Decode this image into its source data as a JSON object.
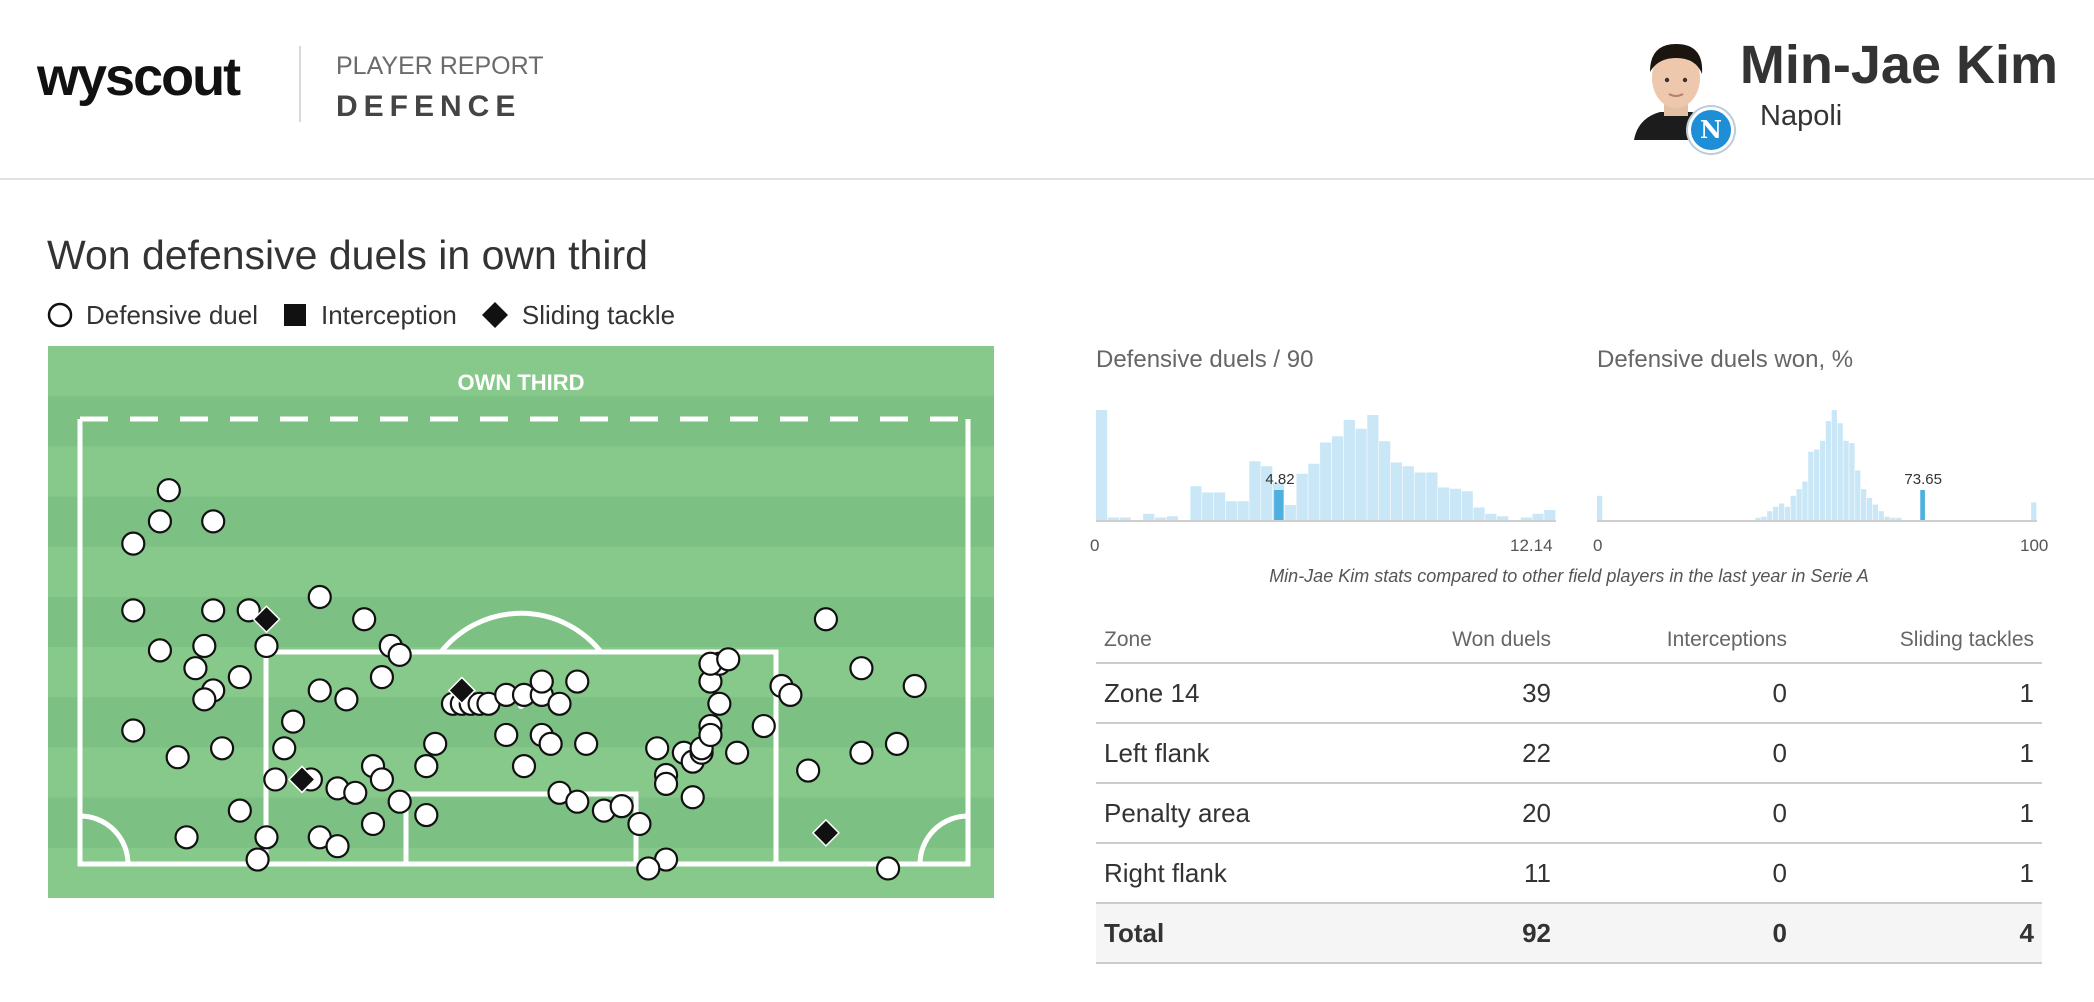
{
  "header": {
    "logo": "wyscout",
    "report_label": "PLAYER REPORT",
    "report_section": "DEFENCE",
    "player_name": "Min-Jae Kim",
    "club": "Napoli",
    "badge_letter": "N"
  },
  "section": {
    "title": "Won defensive duels in own third"
  },
  "legend": [
    {
      "label": "Defensive duel",
      "icon": "circle-icon"
    },
    {
      "label": "Interception",
      "icon": "square-icon"
    },
    {
      "label": "Sliding tackle",
      "icon": "diamond-icon"
    }
  ],
  "pitch": {
    "zone_label": "OWN THIRD",
    "colors": {
      "light": "#86c98a",
      "dark": "#7cc183",
      "line": "#ffffff"
    }
  },
  "histograms": {
    "caption": "Min-Jae Kim stats compared to other field players in the last year in Serie A",
    "bar_color": "#c9e7f6",
    "highlight_color": "#4fb0e0"
  },
  "chart_data": [
    {
      "type": "scatter",
      "title": "Won defensive duels in own third",
      "xlim": [
        0,
        100
      ],
      "ylim": [
        0,
        100
      ],
      "series": [
        {
          "name": "Defensive duel",
          "marker": "circle",
          "points": [
            [
              10,
              16
            ],
            [
              9,
              23
            ],
            [
              15,
              23
            ],
            [
              6,
              28
            ],
            [
              6,
              43
            ],
            [
              15,
              43
            ],
            [
              19,
              43
            ],
            [
              9,
              52
            ],
            [
              14,
              51
            ],
            [
              21,
              51
            ],
            [
              18,
              58
            ],
            [
              27,
              40
            ],
            [
              32,
              45
            ],
            [
              35,
              51
            ],
            [
              36,
              53
            ],
            [
              30,
              63
            ],
            [
              34,
              58
            ],
            [
              27,
              61
            ],
            [
              24,
              68
            ],
            [
              13,
              56
            ],
            [
              15,
              61
            ],
            [
              14,
              63
            ],
            [
              6,
              70
            ],
            [
              11,
              76
            ],
            [
              16,
              74
            ],
            [
              23,
              74
            ],
            [
              22,
              81
            ],
            [
              26,
              81
            ],
            [
              29,
              83
            ],
            [
              33,
              78
            ],
            [
              34,
              81
            ],
            [
              31,
              84
            ],
            [
              36,
              86
            ],
            [
              33,
              91
            ],
            [
              18,
              88
            ],
            [
              12,
              94
            ],
            [
              21,
              94
            ],
            [
              27,
              94
            ],
            [
              29,
              96
            ],
            [
              20,
              99
            ],
            [
              39,
              89
            ],
            [
              39,
              78
            ],
            [
              40,
              73
            ],
            [
              42,
              64
            ],
            [
              43,
              64
            ],
            [
              44,
              64
            ],
            [
              45,
              64
            ],
            [
              46,
              64
            ],
            [
              48,
              62
            ],
            [
              50,
              62
            ],
            [
              52,
              62
            ],
            [
              52,
              59
            ],
            [
              56,
              59
            ],
            [
              54,
              64
            ],
            [
              48,
              71
            ],
            [
              52,
              71
            ],
            [
              53,
              73
            ],
            [
              50,
              78
            ],
            [
              57,
              73
            ],
            [
              54,
              84
            ],
            [
              56,
              86
            ],
            [
              59,
              88
            ],
            [
              61,
              87
            ],
            [
              63,
              91
            ],
            [
              66,
              99
            ],
            [
              65,
              74
            ],
            [
              66,
              80
            ],
            [
              66,
              82
            ],
            [
              68,
              75
            ],
            [
              69,
              77
            ],
            [
              70,
              75
            ],
            [
              70,
              74
            ],
            [
              71,
              69
            ],
            [
              71,
              71
            ],
            [
              72,
              64
            ],
            [
              71,
              59
            ],
            [
              72,
              55
            ],
            [
              79,
              60
            ],
            [
              80,
              62
            ],
            [
              77,
              69
            ],
            [
              74,
              75
            ],
            [
              82,
              79
            ],
            [
              71,
              55
            ],
            [
              73,
              54
            ],
            [
              88,
              56
            ],
            [
              88,
              75
            ],
            [
              92,
              73
            ],
            [
              91,
              101
            ],
            [
              94,
              60
            ],
            [
              84,
              45
            ],
            [
              69,
              85
            ],
            [
              64,
              101
            ]
          ]
        },
        {
          "name": "Interception",
          "marker": "square",
          "points": []
        },
        {
          "name": "Sliding tackle",
          "marker": "diamond",
          "points": [
            [
              21,
              45
            ],
            [
              43,
              61
            ],
            [
              25,
              81
            ],
            [
              84,
              93
            ]
          ]
        }
      ]
    },
    {
      "type": "bar",
      "title": "Defensive duels / 90",
      "xlim": [
        0,
        12.14
      ],
      "tick_labels": [
        "0",
        "12.14"
      ],
      "highlight_value": 4.82,
      "highlight_label": "4.82",
      "values": [
        88,
        2,
        2,
        0,
        5,
        2,
        3,
        0,
        27,
        22,
        22,
        15,
        15,
        47,
        43,
        30,
        12,
        37,
        45,
        62,
        67,
        80,
        73,
        84,
        63,
        46,
        43,
        38,
        38,
        26,
        25,
        23,
        10,
        5,
        3,
        0,
        2,
        5,
        8
      ]
    },
    {
      "type": "bar",
      "title": "Defensive duels won, %",
      "xlim": [
        0,
        100
      ],
      "tick_labels": [
        "0",
        "100"
      ],
      "highlight_value": 73.65,
      "highlight_label": "73.65",
      "values": [
        22,
        0,
        0,
        0,
        0,
        0,
        0,
        0,
        0,
        0,
        0,
        0,
        0,
        0,
        0,
        0,
        0,
        0,
        0,
        0,
        0,
        0,
        0,
        0,
        0,
        0,
        0,
        2,
        3,
        8,
        12,
        15,
        12,
        22,
        28,
        35,
        62,
        64,
        72,
        90,
        100,
        88,
        72,
        70,
        45,
        28,
        20,
        14,
        8,
        3,
        2,
        2,
        0,
        0,
        0,
        0,
        0,
        0,
        0,
        0,
        0,
        0,
        0,
        0,
        0,
        0,
        0,
        0,
        0,
        0,
        0,
        0,
        0,
        0,
        16
      ]
    }
  ],
  "table": {
    "headers": [
      "Zone",
      "Won duels",
      "Interceptions",
      "Sliding tackles"
    ],
    "rows": [
      [
        "Zone 14",
        "39",
        "0",
        "1"
      ],
      [
        "Left flank",
        "22",
        "0",
        "1"
      ],
      [
        "Penalty area",
        "20",
        "0",
        "1"
      ],
      [
        "Right flank",
        "11",
        "0",
        "1"
      ]
    ],
    "total": [
      "Total",
      "92",
      "0",
      "4"
    ]
  }
}
